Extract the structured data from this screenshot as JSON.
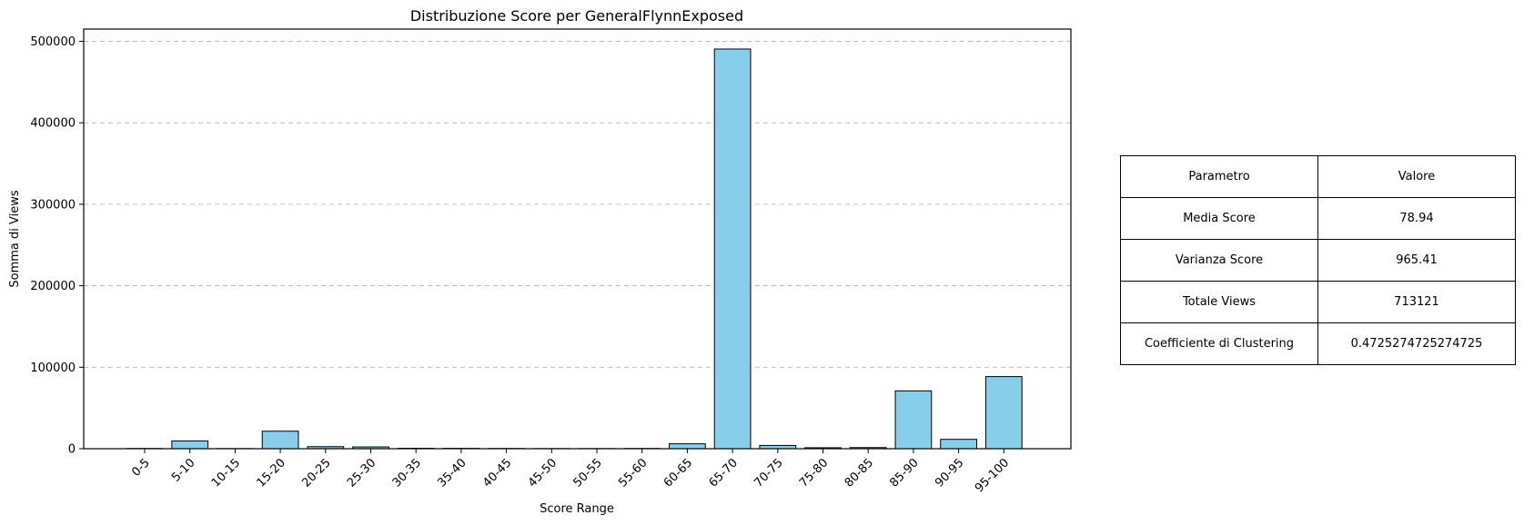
{
  "chart_data": {
    "type": "bar",
    "title": "Distribuzione Score per GeneralFlynnExposed",
    "xlabel": "Score Range",
    "ylabel": "Somma di Views",
    "categories": [
      "0-5",
      "5-10",
      "10-15",
      "15-20",
      "20-25",
      "25-30",
      "30-35",
      "35-40",
      "40-45",
      "45-50",
      "50-55",
      "55-60",
      "60-65",
      "65-70",
      "70-75",
      "75-80",
      "80-85",
      "85-90",
      "90-95",
      "95-100"
    ],
    "values": [
      300,
      9500,
      200,
      21500,
      2500,
      2200,
      500,
      400,
      300,
      200,
      200,
      300,
      6000,
      490500,
      4000,
      1200,
      1400,
      71000,
      11500,
      88500
    ],
    "ylim": [
      0,
      515000
    ],
    "yticks": [
      0,
      100000,
      200000,
      300000,
      400000,
      500000
    ],
    "ytick_labels": [
      "0",
      "100000",
      "200000",
      "300000",
      "400000",
      "500000"
    ],
    "grid": "y-dashed",
    "bar_color": "#87ceeb",
    "edge_color": "#000000"
  },
  "table": {
    "header": [
      "Parametro",
      "Valore"
    ],
    "rows": [
      [
        "Media Score",
        "78.94"
      ],
      [
        "Varianza Score",
        "965.41"
      ],
      [
        "Totale Views",
        "713121"
      ],
      [
        "Coefficiente di Clustering",
        "0.4725274725274725"
      ]
    ]
  }
}
